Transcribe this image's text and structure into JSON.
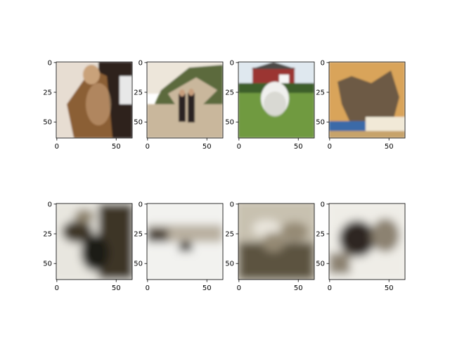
{
  "figure": {
    "background": "#ffffff",
    "grid": false,
    "title": "",
    "rows": [
      {
        "panels": [
          {
            "image": "airedale-terrier-photo",
            "palette": [
              "#2e241b",
              "#8b5e35",
              "#c9a27a",
              "#e7ddd2"
            ]
          },
          {
            "image": "two-people-on-beach-photo",
            "palette": [
              "#5c6b3c",
              "#c9b79c",
              "#ede6da",
              "#2a2220"
            ]
          },
          {
            "image": "white-dog-on-lawn-photo",
            "palette": [
              "#6f9a3f",
              "#9b3530",
              "#f0f0ee",
              "#3e5e2a"
            ]
          },
          {
            "image": "animal-pelt-photo",
            "palette": [
              "#d9a45a",
              "#6d5a45",
              "#3b6aa8",
              "#f1e9d7"
            ]
          }
        ]
      },
      {
        "panels": [
          {
            "image": "grayscale-reconstruction-1",
            "palette": [
              "#e8e6df",
              "#8f846e",
              "#3c3428",
              "#1f1a14"
            ]
          },
          {
            "image": "grayscale-reconstruction-2",
            "palette": [
              "#f2f2ef",
              "#b9b0a0",
              "#4a4136",
              "#241e17"
            ]
          },
          {
            "image": "grayscale-reconstruction-3",
            "palette": [
              "#c8c1b0",
              "#958a74",
              "#5c5240",
              "#e9e5dc"
            ]
          },
          {
            "image": "grayscale-reconstruction-4",
            "palette": [
              "#efede7",
              "#8c8271",
              "#2e2820",
              "#b2a995"
            ]
          }
        ]
      }
    ]
  },
  "chart_data": {
    "type": "image-grid",
    "rows": 2,
    "cols": 4,
    "x_ticks": [
      "0",
      "50"
    ],
    "y_ticks": [
      "0",
      "25",
      "50"
    ],
    "x_tick_values": [
      0,
      50
    ],
    "y_tick_values": [
      0,
      25,
      50
    ],
    "xlim": [
      -0.5,
      63.5
    ],
    "ylim": [
      63.5,
      -0.5
    ],
    "image_size": [
      64,
      64
    ],
    "xlabel": "",
    "ylabel": ""
  }
}
